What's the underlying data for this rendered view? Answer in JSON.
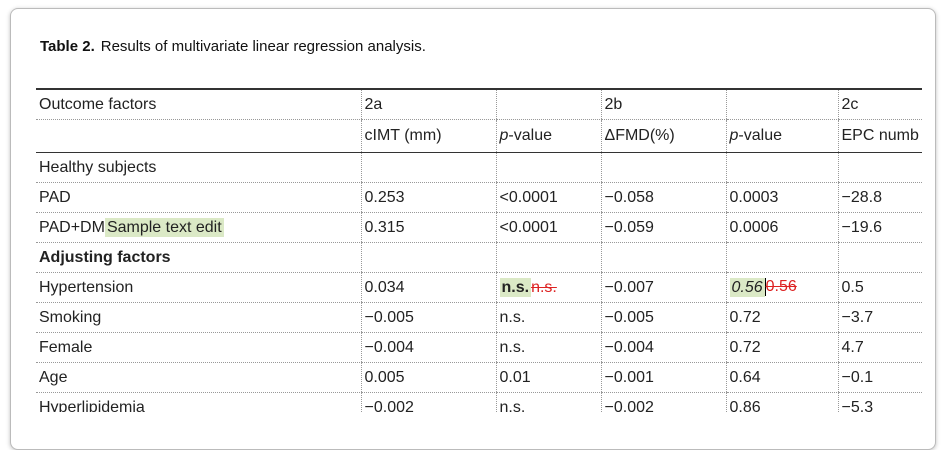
{
  "caption": {
    "label": "Table 2.",
    "text": "Results of multivariate linear regression analysis."
  },
  "table": {
    "rows": [
      [
        "Outcome factors",
        "2a",
        null,
        "2b",
        null,
        "2c"
      ],
      [
        null,
        "cIMT (mm)",
        {
          "italic": "p",
          "text": "-value"
        },
        "ΔFMD(%)",
        {
          "italic": "p",
          "text": "-value"
        },
        "EPC numb"
      ],
      [
        "Healthy subjects",
        null,
        null,
        null,
        null,
        null
      ],
      [
        "PAD",
        "0.253",
        "<0.0001",
        "−0.058",
        "0.0003",
        "−28.8"
      ],
      [
        {
          "text": "PAD+DM",
          "inserted": "Sample text edit"
        },
        "0.315",
        "<0.0001",
        "−0.059",
        "0.0006",
        "−19.6"
      ],
      [
        {
          "bold": "Adjusting factors"
        },
        null,
        null,
        null,
        null,
        null
      ],
      [
        "Hypertension",
        "0.034",
        {
          "inserted": "n.s.",
          "inserted_style": "bold",
          "deleted": "n.s."
        },
        "−0.007",
        {
          "inserted": "0.56",
          "inserted_style": "italic",
          "caret": true,
          "deleted": "0.56"
        },
        "0.5"
      ],
      [
        "Smoking",
        "−0.005",
        "n.s.",
        "−0.005",
        "0.72",
        "−3.7"
      ],
      [
        "Female",
        "−0.004",
        "n.s.",
        "−0.004",
        "0.72",
        "4.7"
      ],
      [
        "Age",
        "0.005",
        "0.01",
        "−0.001",
        "0.64",
        "−0.1"
      ],
      [
        "Hyperlipidemia",
        "−0.002",
        "n.s.",
        "−0.002",
        "0.86",
        "−5.3"
      ]
    ]
  }
}
